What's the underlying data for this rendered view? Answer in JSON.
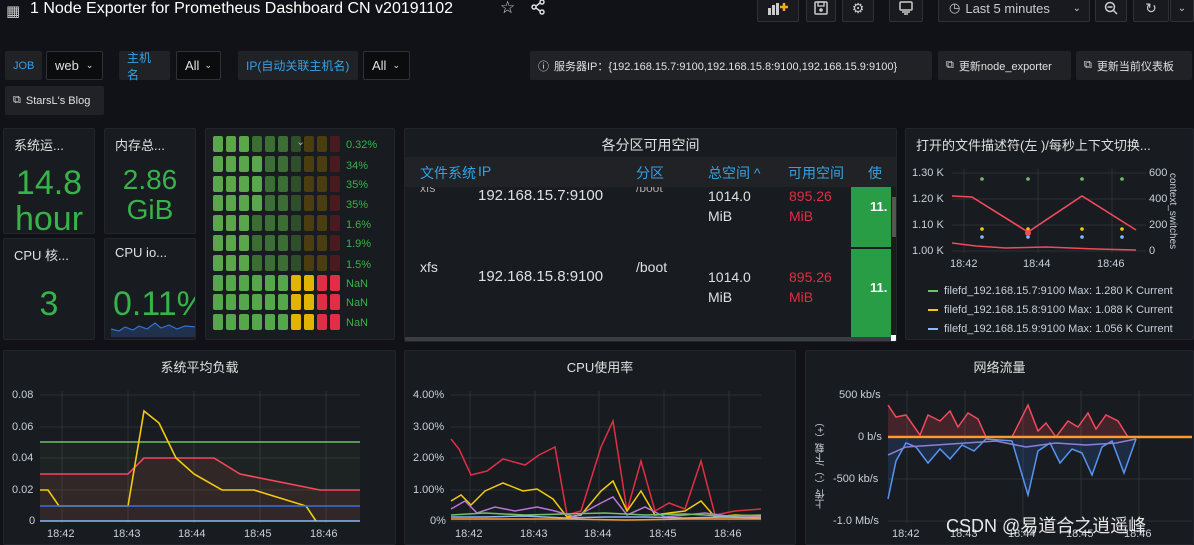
{
  "header": {
    "title": "1 Node Exporter for Prometheus Dashboard CN v20191102",
    "time_range": "Last 5 minutes"
  },
  "vars": {
    "job_label": "JOB",
    "job_value": "web",
    "host_label": "主机名",
    "host_value": "All",
    "ip_label": "IP(自动关联主机名)",
    "ip_value": "All",
    "server_ip": "服务器IP：{192.168.15.7:9100,192.168.15.8:9100,192.168.15.9:9100}",
    "update_exporter": "更新node_exporter",
    "update_dash": "更新当前仪表板",
    "blog": "StarsL's Blog"
  },
  "stats": {
    "uptime_title": "系统运...",
    "uptime_value": "14.8",
    "uptime_unit": "hour",
    "mem_title": "内存总...",
    "mem_value": "2.86",
    "mem_unit": "GiB",
    "cpu_cores_title": "CPU 核...",
    "cpu_cores_value": "3",
    "cpu_io_title": "CPU io...",
    "cpu_io_value": "0.11%"
  },
  "bargauge": {
    "values": [
      "0.32%",
      "34%",
      "35%",
      "35%",
      "1.6%",
      "1.9%",
      "1.5%",
      "NaN",
      "NaN",
      "NaN"
    ],
    "fills": [
      0.32,
      34,
      35,
      35,
      1.6,
      1.9,
      1.5,
      0,
      0,
      0
    ]
  },
  "partition": {
    "title": "各分区可用空间",
    "headers": [
      "文件系统",
      "IP",
      "分区",
      "总空间 ^",
      "可用空间",
      "使"
    ],
    "rows": [
      {
        "fs": "xfs",
        "ip": "192.168.15.7:9100",
        "mount": "/boot",
        "total": "1014.0 MiB",
        "total_a": "1014.0",
        "total_b": "MiB",
        "free_a": "895.26",
        "free_b": "MiB",
        "used": "11."
      },
      {
        "fs": "xfs",
        "ip": "192.168.15.8:9100",
        "mount": "/boot",
        "total_a": "1014.0",
        "total_b": "MiB",
        "free_a": "895.26",
        "free_b": "MiB",
        "used": "11."
      }
    ]
  },
  "fd_panel": {
    "title": "打开的文件描述符(左 )/每秒上下文切换...",
    "ylabel_right": "context_switches",
    "yticks_left": [
      "1.30 K",
      "1.20 K",
      "1.10 K",
      "1.00 K"
    ],
    "yticks_right": [
      "600",
      "400",
      "200",
      "0"
    ],
    "xticks": [
      "18:42",
      "18:44",
      "18:46"
    ],
    "legend": [
      {
        "name": "filefd_192.168.15.7:9100",
        "max": "Max: 1.280 K",
        "cur": "Current",
        "color": "#73bf69"
      },
      {
        "name": "filefd_192.168.15.8:9100",
        "max": "Max: 1.088 K",
        "cur": "Current",
        "color": "#f2cc0c"
      },
      {
        "name": "filefd_192.168.15.9:9100",
        "max": "Max: 1.056 K",
        "cur": "Current",
        "color": "#8ab8ff"
      }
    ]
  },
  "load_panel": {
    "title": "系统平均负载",
    "yticks": [
      "0.08",
      "0.06",
      "0.04",
      "0.02",
      "0"
    ],
    "xticks": [
      "18:42",
      "18:43",
      "18:44",
      "18:45",
      "18:46"
    ]
  },
  "cpu_panel": {
    "title": "CPU使用率",
    "yticks": [
      "4.00%",
      "3.00%",
      "2.00%",
      "1.00%",
      "0%"
    ],
    "xticks": [
      "18:42",
      "18:43",
      "18:44",
      "18:45",
      "18:46"
    ]
  },
  "net_panel": {
    "title": "网络流量",
    "ylabel": "上传（-）/下载（+）",
    "yticks": [
      "500 kb/s",
      "0 b/s",
      "-500 kb/s",
      "-1.0 Mb/s"
    ],
    "xticks": [
      "18:42",
      "18:43",
      "18:44",
      "18:45",
      "18:46"
    ]
  },
  "watermark": "CSDN @易道合之逍遥峰"
}
